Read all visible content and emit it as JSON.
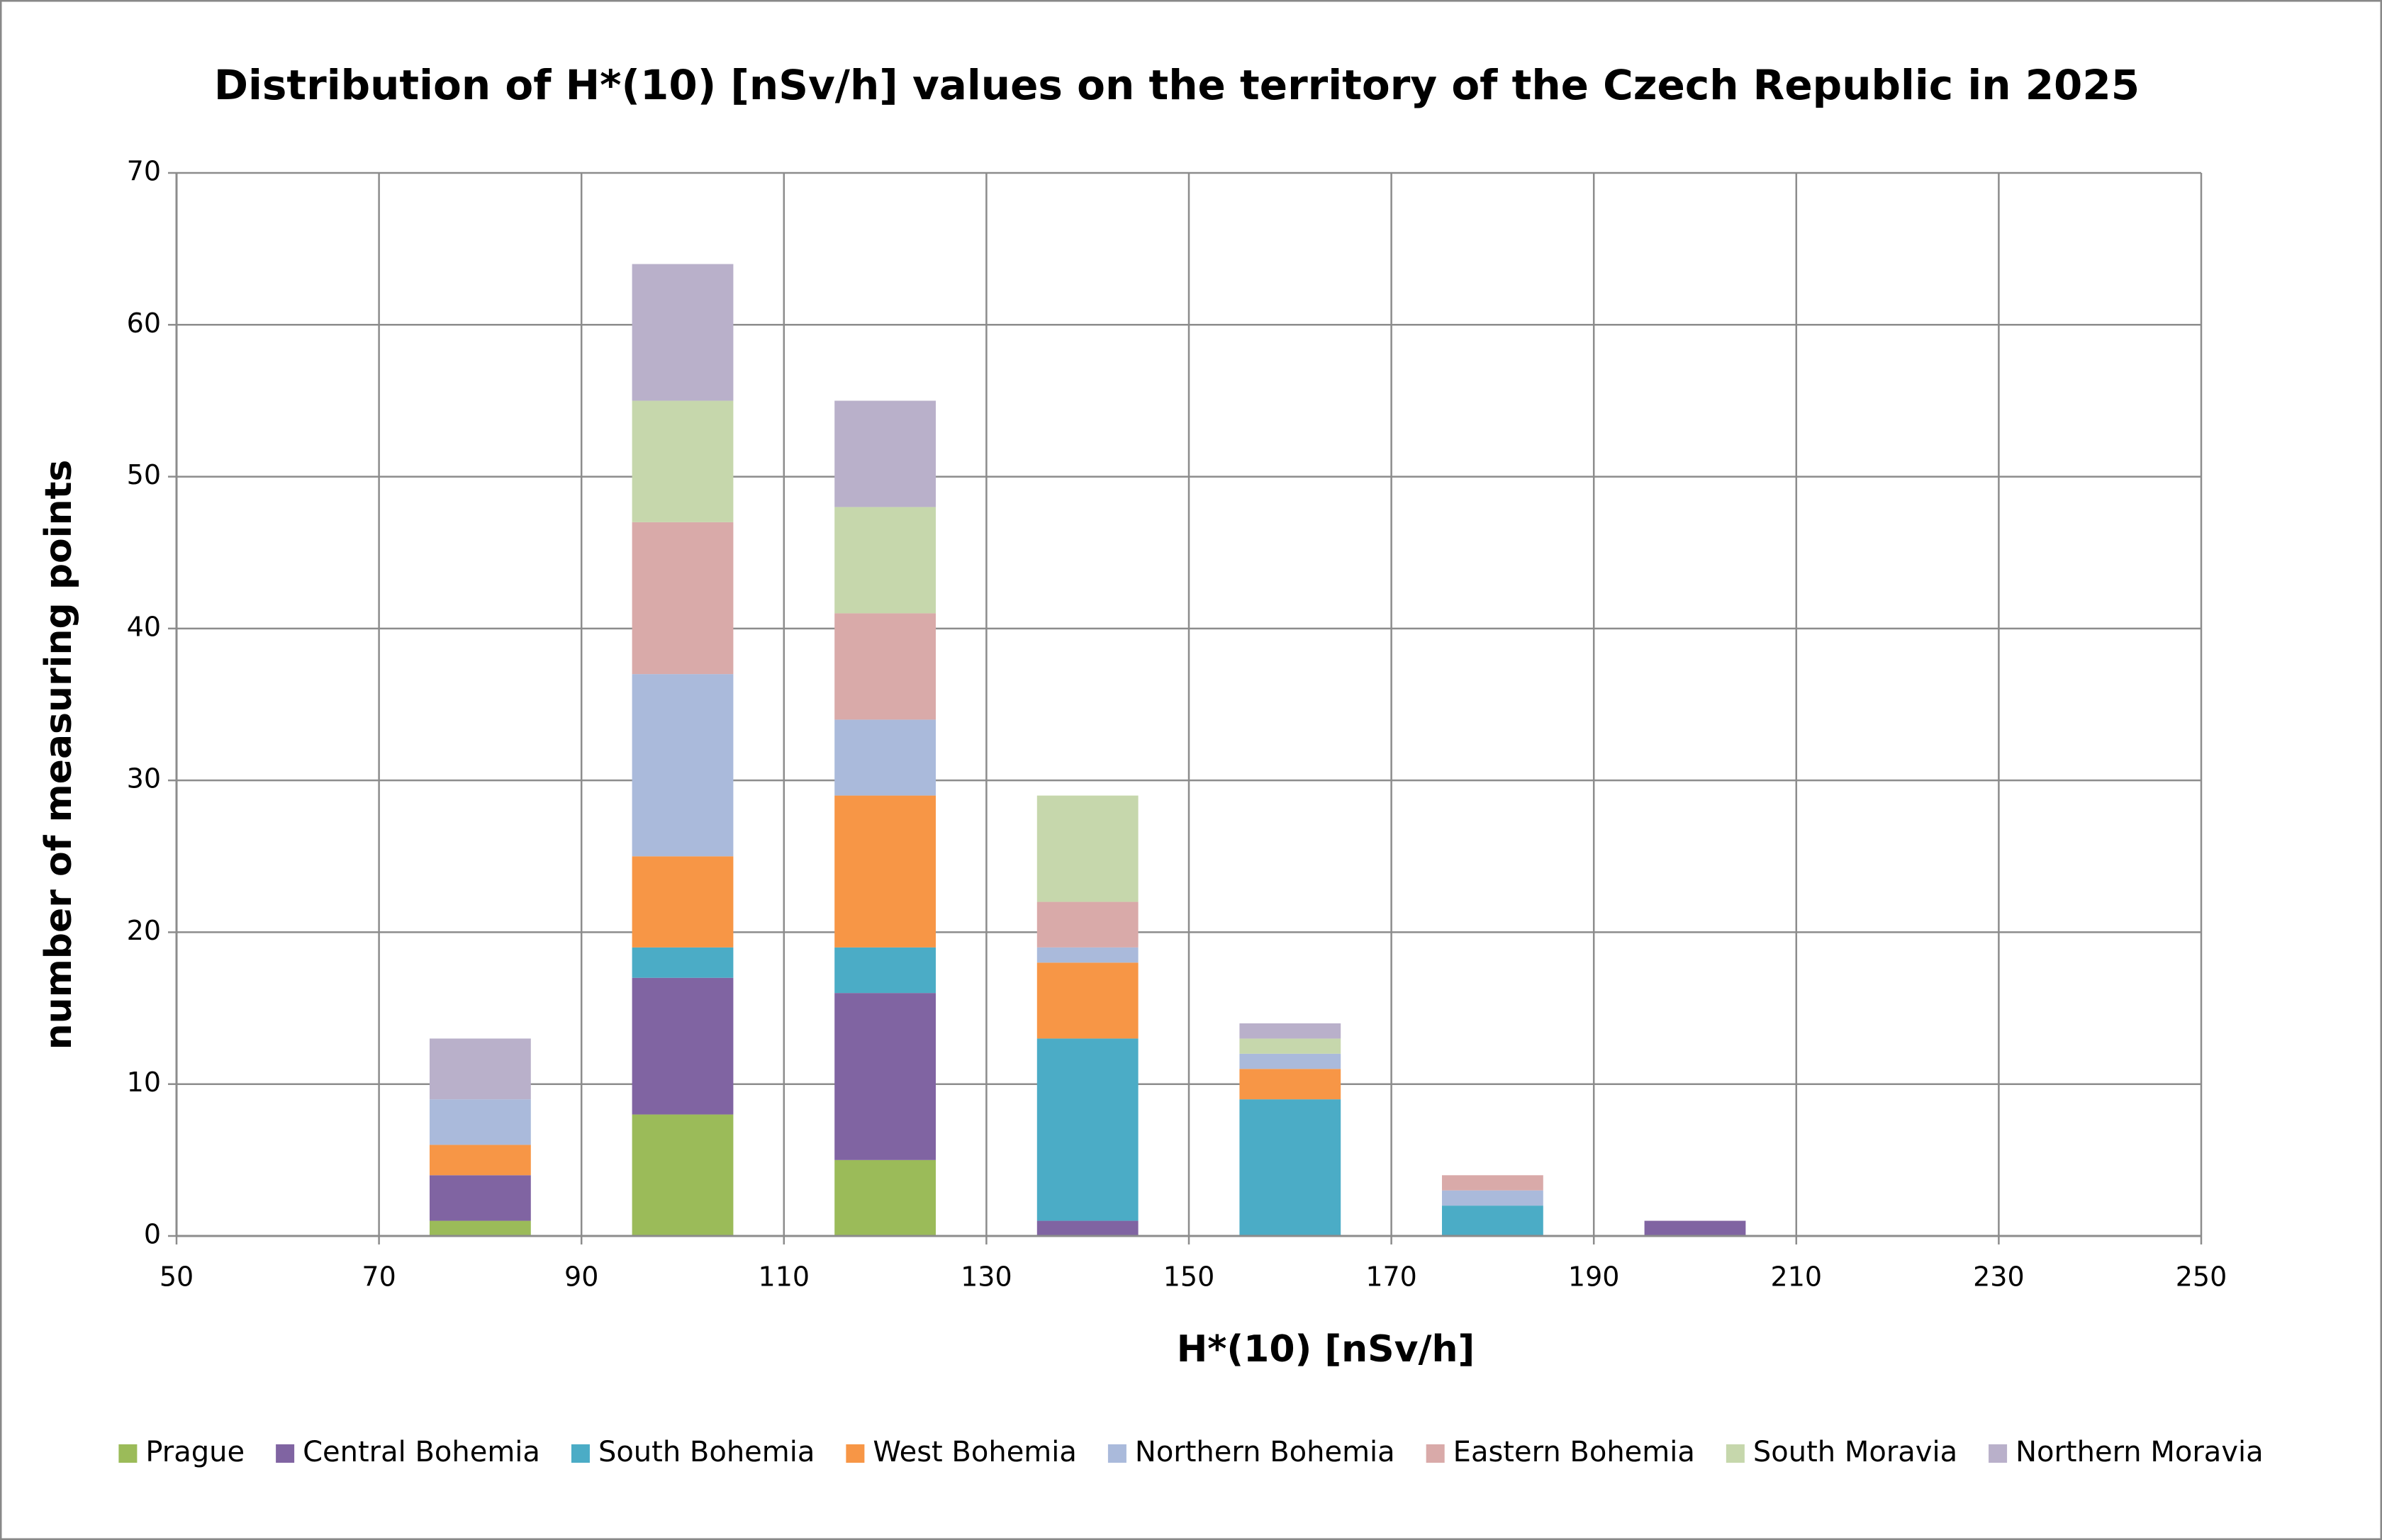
{
  "chart_data": {
    "type": "bar",
    "stacked": true,
    "title": "Distribution of H*(10) [nSv/h] values on the territory of the Czech Republic in 2025",
    "x_label": "H*(10) [nSv/h]",
    "y_label": "number of measuring points",
    "x": [
      80,
      100,
      120,
      140,
      160,
      180,
      200
    ],
    "series": [
      {
        "name": "Prague",
        "color": "#9bbb59",
        "values": [
          1,
          8,
          5,
          0,
          0,
          0,
          0
        ]
      },
      {
        "name": "Central Bohemia",
        "color": "#8064a2",
        "values": [
          3,
          9,
          11,
          1,
          0,
          0,
          1
        ]
      },
      {
        "name": "South Bohemia",
        "color": "#4bacc6",
        "values": [
          0,
          2,
          3,
          12,
          9,
          2,
          0
        ]
      },
      {
        "name": "West Bohemia",
        "color": "#f79646",
        "values": [
          2,
          6,
          10,
          5,
          2,
          0,
          0
        ]
      },
      {
        "name": "Northern Bohemia",
        "color": "#aabadb",
        "values": [
          3,
          12,
          5,
          1,
          1,
          1,
          0
        ]
      },
      {
        "name": "Eastern Bohemia",
        "color": "#d9aaa9",
        "values": [
          0,
          10,
          7,
          3,
          0,
          1,
          0
        ]
      },
      {
        "name": "South Moravia",
        "color": "#c6d7ac",
        "values": [
          0,
          8,
          7,
          7,
          1,
          0,
          0
        ]
      },
      {
        "name": "Northern Moravia",
        "color": "#b9b0ca",
        "values": [
          4,
          9,
          7,
          0,
          1,
          0,
          0
        ]
      }
    ],
    "xlim": [
      50,
      250
    ],
    "xticks": [
      50,
      70,
      90,
      110,
      130,
      150,
      170,
      190,
      210,
      230,
      250
    ],
    "ylim": [
      0,
      70
    ],
    "yticks": [
      0,
      10,
      20,
      30,
      40,
      50,
      60,
      70
    ],
    "grid": true,
    "legend": "bottom"
  }
}
